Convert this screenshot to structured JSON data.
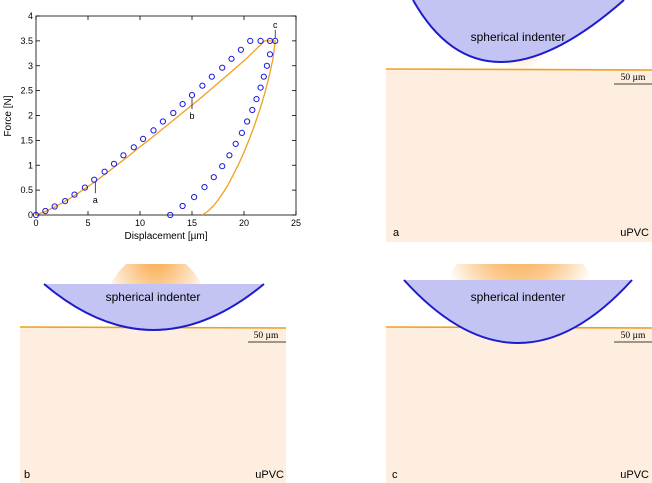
{
  "chart_data": {
    "type": "scatter",
    "xlabel": "Displacement [µm]",
    "ylabel": "Force [N]",
    "xlim": [
      0,
      25
    ],
    "ylim": [
      0,
      4
    ],
    "xticks": [
      "0",
      "5",
      "10",
      "15",
      "20",
      "25"
    ],
    "yticks": [
      "0",
      "0.5",
      "1",
      "1.5",
      "2",
      "2.5",
      "3",
      "3.5",
      "4"
    ],
    "series": [
      {
        "kind": "markers",
        "color": "#1a1adc",
        "x": [
          0,
          0.9,
          1.8,
          2.8,
          3.7,
          4.7,
          5.6,
          6.6,
          7.5,
          8.4,
          9.4,
          10.3,
          11.3,
          12.2,
          13.2,
          14.1,
          15.0,
          16.0,
          16.9,
          17.9,
          18.8,
          19.7,
          20.6,
          21.6,
          22.5,
          23.0,
          22.5,
          22.2,
          21.9,
          21.6,
          21.2,
          20.8,
          20.3,
          19.8,
          19.2,
          18.6,
          17.9,
          17.1,
          16.2,
          15.2,
          14.1,
          12.9
        ],
        "y": [
          0,
          0.08,
          0.17,
          0.28,
          0.41,
          0.55,
          0.71,
          0.87,
          1.03,
          1.2,
          1.36,
          1.53,
          1.7,
          1.88,
          2.05,
          2.23,
          2.41,
          2.6,
          2.78,
          2.96,
          3.14,
          3.32,
          3.5,
          3.5,
          3.5,
          3.5,
          3.23,
          3.0,
          2.78,
          2.56,
          2.33,
          2.11,
          1.88,
          1.65,
          1.43,
          1.2,
          0.98,
          0.76,
          0.56,
          0.36,
          0.18,
          0
        ]
      },
      {
        "kind": "line",
        "color": "#f0a020",
        "x": [
          0,
          1,
          2,
          3,
          4,
          5,
          6,
          7,
          8,
          9,
          10,
          11,
          12,
          13,
          14,
          15,
          16,
          17,
          18,
          19,
          20,
          21,
          22,
          23,
          22.8,
          22.4,
          22.0,
          21.5,
          21.0,
          20.5,
          20.0,
          19.5,
          19.0,
          18.5,
          18.0,
          17.5,
          17.0,
          16.5,
          16.0
        ],
        "y": [
          0,
          0.08,
          0.18,
          0.3,
          0.43,
          0.57,
          0.72,
          0.88,
          1.04,
          1.2,
          1.37,
          1.53,
          1.7,
          1.87,
          2.04,
          2.21,
          2.38,
          2.56,
          2.74,
          2.92,
          3.1,
          3.3,
          3.5,
          3.5,
          3.15,
          2.78,
          2.45,
          2.1,
          1.8,
          1.52,
          1.26,
          1.03,
          0.82,
          0.62,
          0.45,
          0.3,
          0.17,
          0.07,
          0
        ]
      }
    ],
    "annotations": [
      {
        "text": "a",
        "x": 5.7,
        "y": 0.72
      },
      {
        "text": "b",
        "x": 15.0,
        "y": 2.41
      },
      {
        "text": "c",
        "x": 23.0,
        "y": 3.5
      }
    ]
  },
  "panels": [
    {
      "id": "a",
      "letter": "a",
      "material": "uPVC",
      "indenter_label": "spherical indenter",
      "scale_label": "50 µm"
    },
    {
      "id": "b",
      "letter": "b",
      "material": "uPVC",
      "indenter_label": "spherical indenter",
      "scale_label": "50 µm"
    },
    {
      "id": "c",
      "letter": "c",
      "material": "uPVC",
      "indenter_label": "spherical indenter",
      "scale_label": "50 µm"
    }
  ],
  "colors": {
    "marker": "#1a1adc",
    "curve": "#f0a020",
    "indenter_fill": "#c4c4f4",
    "indenter_edge": "#1c1ccc",
    "material_bg": "#fdeedf",
    "stress": "#f7941d"
  }
}
